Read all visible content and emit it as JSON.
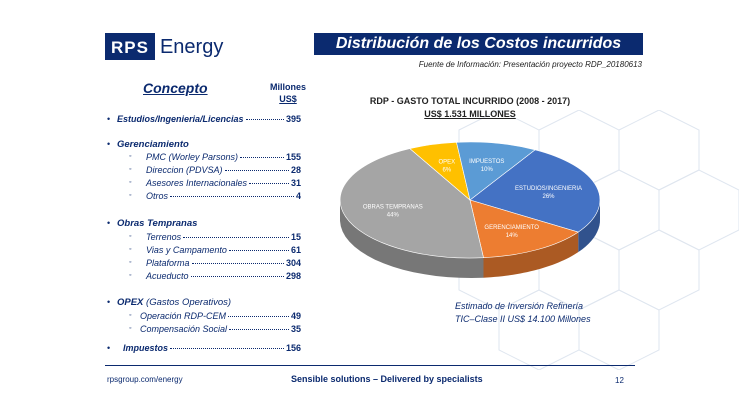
{
  "logo": {
    "part1": "RPS",
    "part2": "Energy"
  },
  "title": "Distribución de los Costos incurridos",
  "source": "Fuente de Información: Presentación proyecto RDP_20180613",
  "table": {
    "header_concept": "Concepto",
    "header_units_1": "Millones",
    "header_units_2": "US$",
    "rows": [
      {
        "label": "Estudios/Ingenieria/Licencias",
        "value": "395"
      },
      {
        "label": "PMC (Worley Parsons)",
        "value": "155"
      },
      {
        "label": "Direccion (PDVSA)",
        "value": "28"
      },
      {
        "label": "Asesores Internacionales",
        "value": "31"
      },
      {
        "label": "Otros",
        "value": "4"
      },
      {
        "label": "Terrenos",
        "value": "15"
      },
      {
        "label": "Vias y Campamento",
        "value": "61"
      },
      {
        "label": "Plataforma",
        "value": "304"
      },
      {
        "label": "Acueducto",
        "value": "298"
      },
      {
        "label": "Operación RDP-CEM",
        "value": "49"
      },
      {
        "label": "Compensación Social",
        "value": "35"
      },
      {
        "label": "Impuestos",
        "value": "156"
      }
    ],
    "categories": {
      "gerenciamiento": "Gerenciamiento",
      "obras": "Obras Tempranas",
      "opex": "OPEX",
      "opex_paren": "(Gastos Operativos)"
    }
  },
  "chart_data": {
    "type": "pie",
    "title": "RDP - GASTO TOTAL INCURRIDO (2008 - 2017)",
    "subtitle": "US$ 1.531 MILLONES",
    "categories": [
      "ESTUDIOS/INGENIERIA",
      "GERENCIAMIENTO",
      "OBRAS TEMPRANAS",
      "OPEX",
      "IMPUESTOS"
    ],
    "values": [
      26,
      14,
      44,
      6,
      10
    ],
    "value_labels": [
      "26%",
      "14%",
      "44%",
      "6%",
      "10%"
    ],
    "colors": [
      "#4472c4",
      "#ed7d31",
      "#a5a5a5",
      "#ffc000",
      "#5b9bd5"
    ],
    "legend": "none"
  },
  "note": {
    "line1": "Estimado de Inversión Refinería",
    "line2": "TIC–Clase II  US$ 14.100 Millones"
  },
  "footer": {
    "url": "rpsgroup.com/energy",
    "tagline": "Sensible solutions – Delivered by specialists",
    "page": "12"
  }
}
